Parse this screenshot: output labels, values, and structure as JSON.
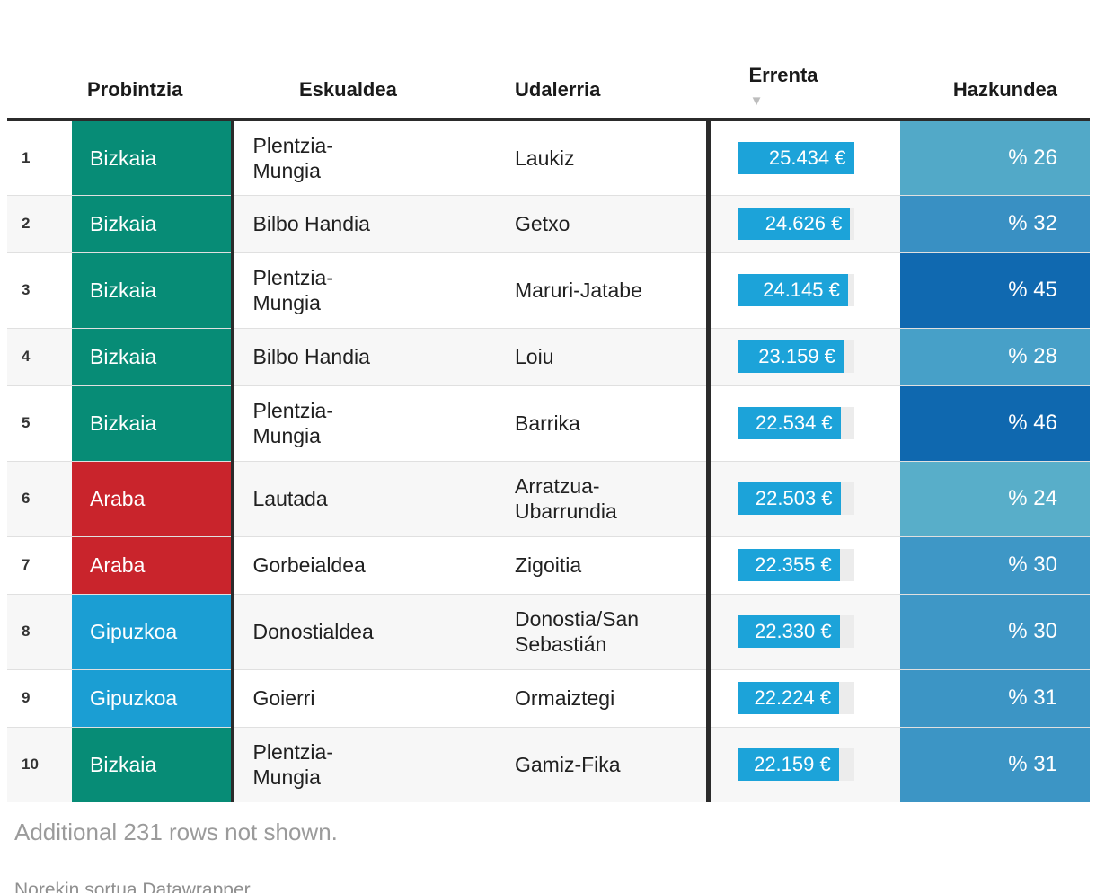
{
  "chart_data": {
    "type": "table",
    "columns": [
      "",
      "Probintzia",
      "Eskualdea",
      "Udalerria",
      "Errenta",
      "Hazkundea"
    ],
    "sorted_by": "Errenta",
    "sort_direction": "desc",
    "sort_icon": "▼",
    "errenta_axis_max": 25434,
    "province_colors": {
      "Bizkaia": "#078C76",
      "Araba": "#C9242C",
      "Gipuzkoa": "#1B9ED3"
    },
    "bar_color": "#1CA3D9",
    "bar_track_color": "#ececec",
    "rows": [
      {
        "rank": "1",
        "probintzia": "Bizkaia",
        "eskualdea": "Plentzia-\nMungia",
        "udalerria": "Laukiz",
        "errenta_label": "25.434 €",
        "errenta_value": 25434,
        "hazkundea_label": "% 26",
        "hazkundea_value": 26,
        "province_color": "#078C76",
        "hazkundea_color": "#52A9C8",
        "size": "tall"
      },
      {
        "rank": "2",
        "probintzia": "Bizkaia",
        "eskualdea": "Bilbo Handia",
        "udalerria": "Getxo",
        "errenta_label": "24.626 €",
        "errenta_value": 24626,
        "hazkundea_label": "% 32",
        "hazkundea_value": 32,
        "province_color": "#078C76",
        "hazkundea_color": "#3990C3",
        "size": "short"
      },
      {
        "rank": "3",
        "probintzia": "Bizkaia",
        "eskualdea": "Plentzia-\nMungia",
        "udalerria": "Maruri-Jatabe",
        "errenta_label": "24.145 €",
        "errenta_value": 24145,
        "hazkundea_label": "% 45",
        "hazkundea_value": 45,
        "province_color": "#078C76",
        "hazkundea_color": "#1069B0",
        "size": "tall"
      },
      {
        "rank": "4",
        "probintzia": "Bizkaia",
        "eskualdea": "Bilbo Handia",
        "udalerria": "Loiu",
        "errenta_label": "23.159 €",
        "errenta_value": 23159,
        "hazkundea_label": "% 28",
        "hazkundea_value": 28,
        "province_color": "#078C76",
        "hazkundea_color": "#47A0C8",
        "size": "short"
      },
      {
        "rank": "5",
        "probintzia": "Bizkaia",
        "eskualdea": "Plentzia-\nMungia",
        "udalerria": "Barrika",
        "errenta_label": "22.534 €",
        "errenta_value": 22534,
        "hazkundea_label": "% 46",
        "hazkundea_value": 46,
        "province_color": "#078C76",
        "hazkundea_color": "#0F68AF",
        "size": "tall"
      },
      {
        "rank": "6",
        "probintzia": "Araba",
        "eskualdea": "Lautada",
        "udalerria": "Arratzua-\nUbarrundia",
        "errenta_label": "22.503 €",
        "errenta_value": 22503,
        "hazkundea_label": "% 24",
        "hazkundea_value": 24,
        "province_color": "#C9242C",
        "hazkundea_color": "#58AEC9",
        "size": "tall"
      },
      {
        "rank": "7",
        "probintzia": "Araba",
        "eskualdea": "Gorbeialdea",
        "udalerria": "Zigoitia",
        "errenta_label": "22.355 €",
        "errenta_value": 22355,
        "hazkundea_label": "% 30",
        "hazkundea_value": 30,
        "province_color": "#C9242C",
        "hazkundea_color": "#3E97C6",
        "size": "short"
      },
      {
        "rank": "8",
        "probintzia": "Gipuzkoa",
        "eskualdea": "Donostialdea",
        "udalerria": "Donostia/San\nSebastián",
        "errenta_label": "22.330 €",
        "errenta_value": 22330,
        "hazkundea_label": "% 30",
        "hazkundea_value": 30,
        "province_color": "#1B9ED3",
        "hazkundea_color": "#3E97C6",
        "size": "tall"
      },
      {
        "rank": "9",
        "probintzia": "Gipuzkoa",
        "eskualdea": "Goierri",
        "udalerria": "Ormaiztegi",
        "errenta_label": "22.224 €",
        "errenta_value": 22224,
        "hazkundea_label": "% 31",
        "hazkundea_value": 31,
        "province_color": "#1B9ED3",
        "hazkundea_color": "#3C95C5",
        "size": "short"
      },
      {
        "rank": "10",
        "probintzia": "Bizkaia",
        "eskualdea": "Plentzia-\nMungia",
        "udalerria": "Gamiz-Fika",
        "errenta_label": "22.159 €",
        "errenta_value": 22159,
        "hazkundea_label": "% 31",
        "hazkundea_value": 31,
        "province_color": "#078C76",
        "hazkundea_color": "#3C95C5",
        "size": "tall"
      }
    ]
  },
  "footer": {
    "note": "Additional 231 rows not shown.",
    "attribution": "Norekin sortua Datawrapper"
  }
}
